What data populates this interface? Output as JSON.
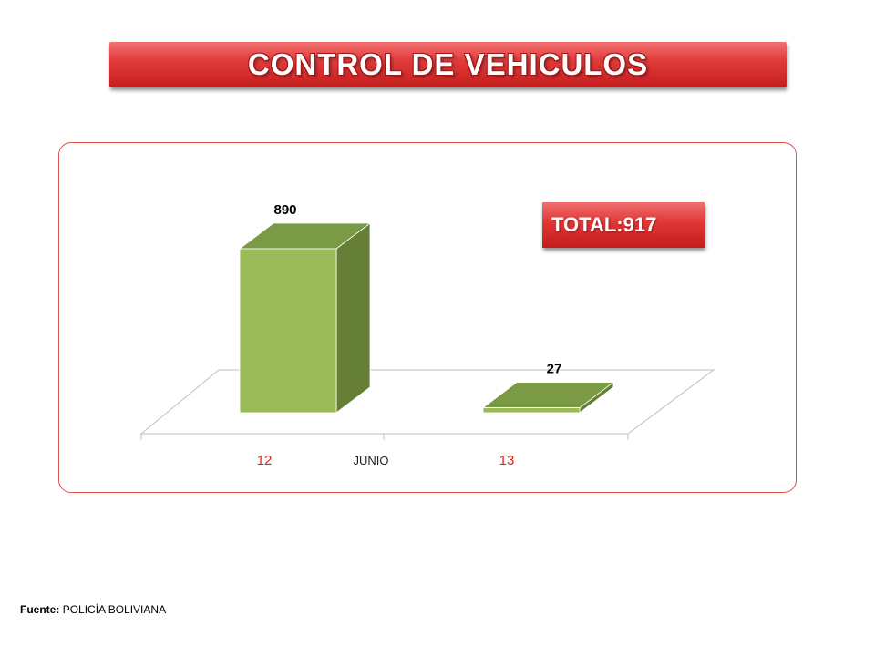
{
  "title": "CONTROL DE VEHICULOS",
  "total_badge": "TOTAL:917",
  "source": {
    "label": "Fuente:",
    "value": "POLICÍA BOLIVIANA"
  },
  "colors": {
    "bar_front": "#9bbb59",
    "bar_top": "#7a9a46",
    "bar_side": "#657f36",
    "category_label": "#e3201b",
    "frame_border": "#d9534f",
    "banner_red": "#e23b3b"
  },
  "chart_data": {
    "type": "bar",
    "style": "3d-column",
    "categories": [
      "12",
      "13"
    ],
    "values": [
      890,
      27
    ],
    "data_labels": [
      "890",
      "27"
    ],
    "xlabel": "JUNIO",
    "ylabel": "",
    "ylim": [
      0,
      890
    ],
    "grid": false,
    "legend": "none"
  }
}
